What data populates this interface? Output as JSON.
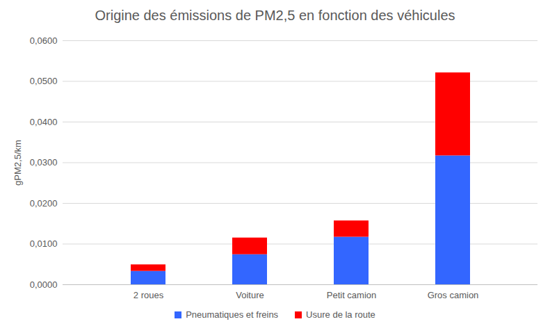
{
  "chart_data": {
    "type": "bar",
    "title": "Origine des émissions de PM2,5 en fonction des véhicules",
    "y_label": "gPM2,5/km",
    "stacked": true,
    "grid": true,
    "legend": "bottom",
    "categories": [
      "2 roues",
      "Voiture",
      "Petit camion",
      "Gros camion"
    ],
    "series": [
      {
        "name": "Pneumatiques et freins",
        "color": "#3366ff",
        "values": [
          0.0033,
          0.0074,
          0.0117,
          0.0317
        ]
      },
      {
        "name": "Usure de la route",
        "color": "#ff0000",
        "values": [
          0.0016,
          0.0041,
          0.004,
          0.0204
        ]
      }
    ],
    "ylim": [
      0,
      0.06
    ],
    "yticks": [
      {
        "value": 0,
        "label": "0,0000"
      },
      {
        "value": 0.01,
        "label": "0,0100"
      },
      {
        "value": 0.02,
        "label": "0,0200"
      },
      {
        "value": 0.03,
        "label": "0,0300"
      },
      {
        "value": 0.04,
        "label": "0,0400"
      },
      {
        "value": 0.05,
        "label": "0,0500"
      },
      {
        "value": 0.06,
        "label": "0,0600"
      }
    ]
  }
}
